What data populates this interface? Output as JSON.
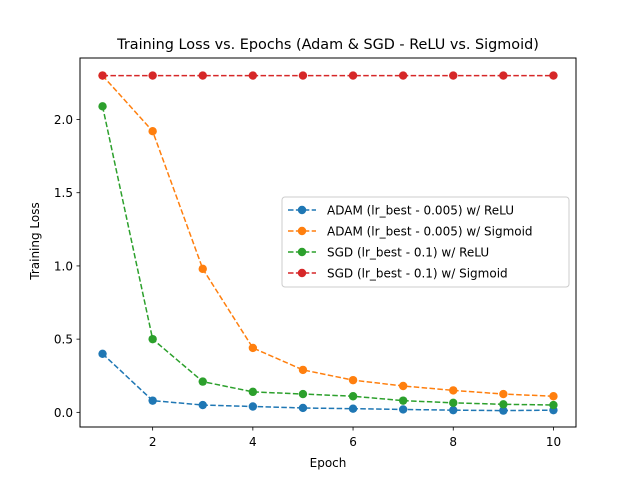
{
  "chart_data": {
    "type": "line",
    "title": "Training Loss vs. Epochs (Adam & SGD - ReLU vs. Sigmoid)",
    "xlabel": "Epoch",
    "ylabel": "Training Loss",
    "xlim": [
      0.55,
      10.45
    ],
    "ylim": [
      -0.1,
      2.42
    ],
    "x_ticks": [
      2,
      4,
      6,
      8,
      10
    ],
    "x_tick_labels": [
      "2",
      "4",
      "6",
      "8",
      "10"
    ],
    "y_ticks": [
      0.0,
      0.5,
      1.0,
      1.5,
      2.0
    ],
    "y_tick_labels": [
      "0.0",
      "0.5",
      "1.0",
      "1.5",
      "2.0"
    ],
    "grid": false,
    "legend_position": "center-right",
    "x": [
      1,
      2,
      3,
      4,
      5,
      6,
      7,
      8,
      9,
      10
    ],
    "series": [
      {
        "name": "ADAM (lr_best - 0.005) w/ ReLU",
        "color": "#1f77b4",
        "values": [
          0.4,
          0.08,
          0.05,
          0.04,
          0.03,
          0.025,
          0.02,
          0.015,
          0.012,
          0.015
        ]
      },
      {
        "name": "ADAM (lr_best - 0.005) w/ Sigmoid",
        "color": "#ff7f0e",
        "values": [
          2.3,
          1.92,
          0.98,
          0.44,
          0.29,
          0.22,
          0.18,
          0.15,
          0.125,
          0.11
        ]
      },
      {
        "name": "SGD (lr_best - 0.1) w/ ReLU",
        "color": "#2ca02c",
        "values": [
          2.09,
          0.5,
          0.21,
          0.14,
          0.125,
          0.11,
          0.08,
          0.065,
          0.055,
          0.05
        ]
      },
      {
        "name": "SGD (lr_best - 0.1) w/ Sigmoid",
        "color": "#d62728",
        "values": [
          2.3,
          2.3,
          2.3,
          2.3,
          2.3,
          2.3,
          2.3,
          2.3,
          2.3,
          2.3
        ]
      }
    ]
  }
}
